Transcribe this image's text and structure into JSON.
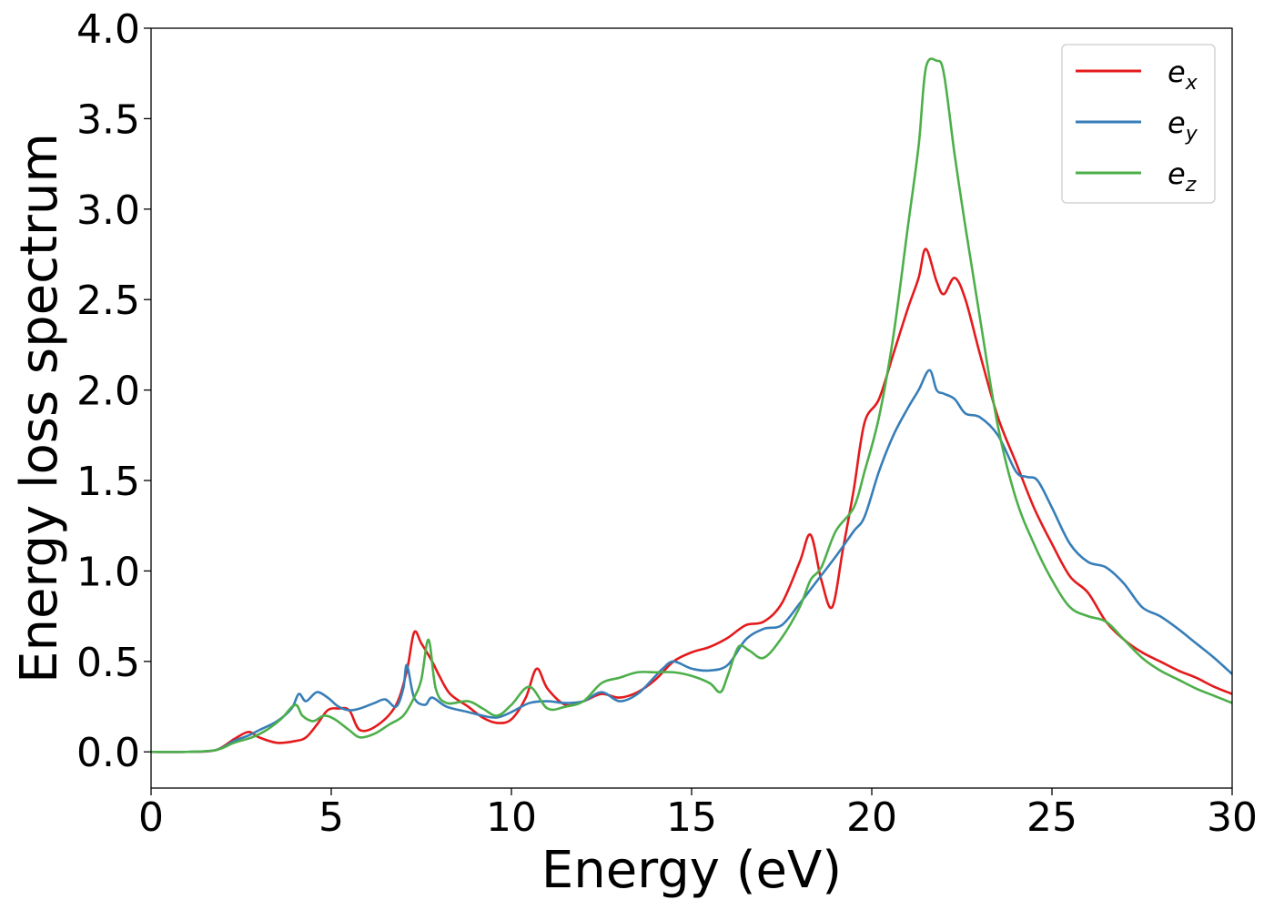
{
  "chart_data": {
    "type": "line",
    "title": "",
    "xlabel": "Energy (eV)",
    "ylabel": "Energy loss spectrum",
    "xlim": [
      0,
      30
    ],
    "ylim": [
      -0.2,
      4.0
    ],
    "xticks": [
      0,
      5,
      10,
      15,
      20,
      25,
      30
    ],
    "xtick_labels": [
      "0",
      "5",
      "10",
      "15",
      "20",
      "25",
      "30"
    ],
    "yticks": [
      0.0,
      0.5,
      1.0,
      1.5,
      2.0,
      2.5,
      3.0,
      3.5,
      4.0
    ],
    "ytick_labels": [
      "0.0",
      "0.5",
      "1.0",
      "1.5",
      "2.0",
      "2.5",
      "3.0",
      "3.5",
      "4.0"
    ],
    "grid": false,
    "legend_position": "top-right",
    "series": [
      {
        "name": "e_x",
        "label_base": "e",
        "label_sub": "x",
        "color": "#e41a1c",
        "x": [
          0,
          1,
          1.8,
          2.3,
          2.7,
          3.0,
          3.5,
          4.0,
          4.3,
          4.6,
          4.9,
          5.2,
          5.5,
          5.8,
          6.3,
          6.8,
          7.1,
          7.3,
          7.5,
          7.8,
          8.0,
          8.3,
          8.8,
          9.2,
          9.6,
          10.0,
          10.4,
          10.7,
          11.0,
          11.5,
          12.0,
          12.5,
          13.0,
          13.5,
          14.0,
          14.5,
          15.0,
          15.5,
          16.0,
          16.5,
          17.0,
          17.5,
          18.0,
          18.3,
          18.6,
          18.9,
          19.2,
          19.5,
          19.8,
          20.2,
          20.6,
          21.0,
          21.3,
          21.5,
          21.8,
          22.0,
          22.3,
          22.6,
          23.0,
          23.5,
          24.0,
          24.5,
          25.0,
          25.5,
          26.0,
          26.5,
          27.0,
          27.5,
          28.0,
          28.5,
          29.0,
          29.5,
          30.0
        ],
        "y": [
          0.0,
          0.0,
          0.01,
          0.07,
          0.11,
          0.08,
          0.05,
          0.06,
          0.08,
          0.15,
          0.23,
          0.24,
          0.23,
          0.12,
          0.15,
          0.26,
          0.45,
          0.66,
          0.6,
          0.5,
          0.42,
          0.32,
          0.25,
          0.19,
          0.16,
          0.18,
          0.3,
          0.46,
          0.35,
          0.26,
          0.28,
          0.32,
          0.3,
          0.33,
          0.4,
          0.5,
          0.55,
          0.58,
          0.63,
          0.7,
          0.72,
          0.82,
          1.05,
          1.2,
          0.95,
          0.8,
          1.12,
          1.45,
          1.82,
          1.95,
          2.2,
          2.45,
          2.62,
          2.78,
          2.6,
          2.53,
          2.62,
          2.5,
          2.2,
          1.85,
          1.6,
          1.35,
          1.15,
          0.97,
          0.88,
          0.72,
          0.62,
          0.55,
          0.5,
          0.45,
          0.41,
          0.36,
          0.32
        ]
      },
      {
        "name": "e_y",
        "label_base": "e",
        "label_sub": "y",
        "color": "#377eb8",
        "x": [
          0,
          1,
          1.8,
          2.3,
          2.7,
          3.0,
          3.5,
          3.9,
          4.1,
          4.3,
          4.6,
          4.9,
          5.2,
          5.5,
          5.8,
          6.2,
          6.5,
          6.8,
          7.0,
          7.1,
          7.3,
          7.6,
          7.8,
          8.2,
          8.8,
          9.2,
          9.6,
          10.0,
          10.5,
          11.0,
          11.5,
          12.0,
          12.5,
          13.0,
          13.5,
          14.0,
          14.2,
          14.5,
          15.0,
          15.5,
          16.0,
          16.5,
          17.0,
          17.5,
          18.0,
          18.5,
          19.0,
          19.5,
          19.8,
          20.2,
          20.6,
          21.0,
          21.3,
          21.6,
          21.8,
          22.0,
          22.3,
          22.6,
          23.0,
          23.5,
          24.0,
          24.3,
          24.6,
          25.0,
          25.5,
          26.0,
          26.5,
          27.0,
          27.5,
          28.0,
          28.5,
          29.0,
          29.5,
          30.0
        ],
        "y": [
          0.0,
          0.0,
          0.01,
          0.06,
          0.09,
          0.12,
          0.17,
          0.24,
          0.32,
          0.28,
          0.33,
          0.3,
          0.25,
          0.23,
          0.24,
          0.27,
          0.29,
          0.25,
          0.35,
          0.48,
          0.3,
          0.26,
          0.3,
          0.25,
          0.22,
          0.2,
          0.19,
          0.22,
          0.27,
          0.28,
          0.27,
          0.28,
          0.33,
          0.28,
          0.32,
          0.42,
          0.46,
          0.5,
          0.46,
          0.45,
          0.48,
          0.62,
          0.68,
          0.7,
          0.82,
          0.95,
          1.08,
          1.22,
          1.3,
          1.55,
          1.75,
          1.9,
          2.0,
          2.11,
          2.0,
          1.98,
          1.95,
          1.87,
          1.85,
          1.75,
          1.55,
          1.52,
          1.5,
          1.35,
          1.15,
          1.05,
          1.02,
          0.93,
          0.8,
          0.75,
          0.68,
          0.6,
          0.52,
          0.43
        ]
      },
      {
        "name": "e_z",
        "label_base": "e",
        "label_sub": "z",
        "color": "#4daf4a",
        "x": [
          0,
          1,
          1.8,
          2.3,
          2.8,
          3.2,
          3.6,
          4.0,
          4.2,
          4.5,
          4.8,
          5.1,
          5.5,
          5.8,
          6.2,
          6.6,
          7.0,
          7.3,
          7.5,
          7.7,
          7.9,
          8.2,
          8.8,
          9.2,
          9.6,
          10.0,
          10.5,
          11.0,
          11.5,
          12.0,
          12.5,
          13.0,
          13.5,
          14.0,
          14.5,
          15.0,
          15.5,
          15.8,
          16.0,
          16.3,
          16.6,
          17.0,
          17.5,
          18.0,
          18.3,
          18.6,
          19.0,
          19.5,
          19.8,
          20.2,
          20.6,
          21.0,
          21.3,
          21.5,
          21.8,
          22.0,
          22.3,
          22.6,
          23.0,
          23.5,
          24.0,
          24.5,
          25.0,
          25.5,
          26.0,
          26.5,
          27.0,
          27.5,
          28.0,
          28.5,
          29.0,
          29.5,
          30.0
        ],
        "y": [
          0.0,
          0.0,
          0.01,
          0.05,
          0.08,
          0.12,
          0.18,
          0.26,
          0.2,
          0.17,
          0.2,
          0.18,
          0.12,
          0.08,
          0.1,
          0.15,
          0.2,
          0.3,
          0.4,
          0.62,
          0.35,
          0.27,
          0.28,
          0.24,
          0.2,
          0.26,
          0.36,
          0.24,
          0.25,
          0.28,
          0.38,
          0.41,
          0.44,
          0.44,
          0.44,
          0.42,
          0.38,
          0.33,
          0.42,
          0.58,
          0.56,
          0.52,
          0.63,
          0.8,
          0.95,
          1.02,
          1.22,
          1.35,
          1.55,
          1.85,
          2.3,
          2.9,
          3.35,
          3.78,
          3.82,
          3.75,
          3.3,
          2.9,
          2.4,
          1.8,
          1.4,
          1.15,
          0.95,
          0.8,
          0.75,
          0.72,
          0.62,
          0.52,
          0.45,
          0.4,
          0.35,
          0.31,
          0.27
        ]
      }
    ]
  }
}
